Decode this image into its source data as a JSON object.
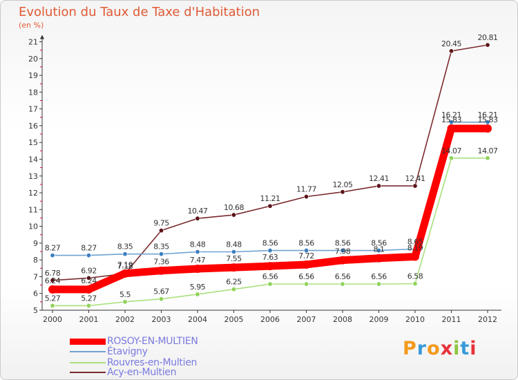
{
  "header": {
    "title": "Evolution du Taux de Taxe d'Habitation",
    "unit": "(en %)"
  },
  "chart_data": {
    "type": "line",
    "title": "Evolution du Taux de Taxe d'Habitation",
    "ylabel": "(en %)",
    "x": [
      "2000",
      "2001",
      "2002",
      "2003",
      "2004",
      "2005",
      "2006",
      "2007",
      "2008",
      "2009",
      "2010",
      "2011",
      "2012"
    ],
    "ylim": [
      5,
      21
    ],
    "yticks": [
      "5",
      "6",
      "7",
      "8",
      "9",
      "10",
      "11",
      "12",
      "13",
      "14",
      "15",
      "16",
      "17",
      "18",
      "19",
      "20",
      "21"
    ],
    "grid": false,
    "legend_position": "bottom-left",
    "series": [
      {
        "name": "ROSOY-EN-MULTIEN",
        "color": "#ff0000",
        "values": [
          6.24,
          6.24,
          7.19,
          7.36,
          7.47,
          7.55,
          7.63,
          7.72,
          7.98,
          8.1,
          8.19,
          15.83,
          15.83
        ],
        "labels": [
          "6.24",
          "6.24",
          "7.19",
          "7.36",
          "7.47",
          "7.55",
          "7.63",
          "7.72",
          "7.98",
          "8.1",
          "8.19",
          "15.83",
          "15.83"
        ]
      },
      {
        "name": "Étavigny",
        "color": "#6fa1cf",
        "values": [
          8.27,
          8.27,
          8.35,
          8.35,
          8.48,
          8.48,
          8.56,
          8.56,
          8.56,
          8.56,
          8.65,
          16.21,
          16.21
        ],
        "labels": [
          "8.27",
          "8.27",
          "8.35",
          "8.35",
          "8.48",
          "8.48",
          "8.56",
          "8.56",
          "8.56",
          "8.56",
          "8.65",
          "16.21",
          "16.21"
        ]
      },
      {
        "name": "Rouvres-en-Multien",
        "color": "#a9e07c",
        "values": [
          5.27,
          5.27,
          5.5,
          5.67,
          5.95,
          6.25,
          6.56,
          6.56,
          6.56,
          6.56,
          6.58,
          14.07,
          14.07
        ],
        "labels": [
          "5.27",
          "5.27",
          "5.5",
          "5.67",
          "5.95",
          "6.25",
          "6.56",
          "6.56",
          "6.56",
          "6.56",
          "6.58",
          "14.07",
          "14.07"
        ]
      },
      {
        "name": "Acy-en-Multien",
        "color": "#7a2a2e",
        "values": [
          6.78,
          6.92,
          7.18,
          9.75,
          10.47,
          10.68,
          11.21,
          11.77,
          12.05,
          12.41,
          12.41,
          20.45,
          20.81
        ],
        "labels": [
          "6.78",
          "6.92",
          "7.18",
          "9.75",
          "10.47",
          "10.68",
          "11.21",
          "11.77",
          "12.05",
          "12.41",
          "12.41",
          "20.45",
          "20.81"
        ]
      }
    ]
  },
  "legend": [
    {
      "label": "ROSOY-EN-MULTIEN",
      "color": "#ff0000"
    },
    {
      "label": "Étavigny",
      "color": "#6fa1cf"
    },
    {
      "label": "Rouvres-en-Multien",
      "color": "#a9e07c"
    },
    {
      "label": "Acy-en-Multien",
      "color": "#7a2a2e"
    }
  ],
  "logo": {
    "letters": [
      "P",
      "r",
      "o",
      "x",
      "i",
      "t",
      "i"
    ],
    "colors": [
      "#f39a1d",
      "#3a9ad9",
      "#f39a1d",
      "#e8323a",
      "#8cc63f",
      "#3a9ad9",
      "#e8323a"
    ]
  }
}
